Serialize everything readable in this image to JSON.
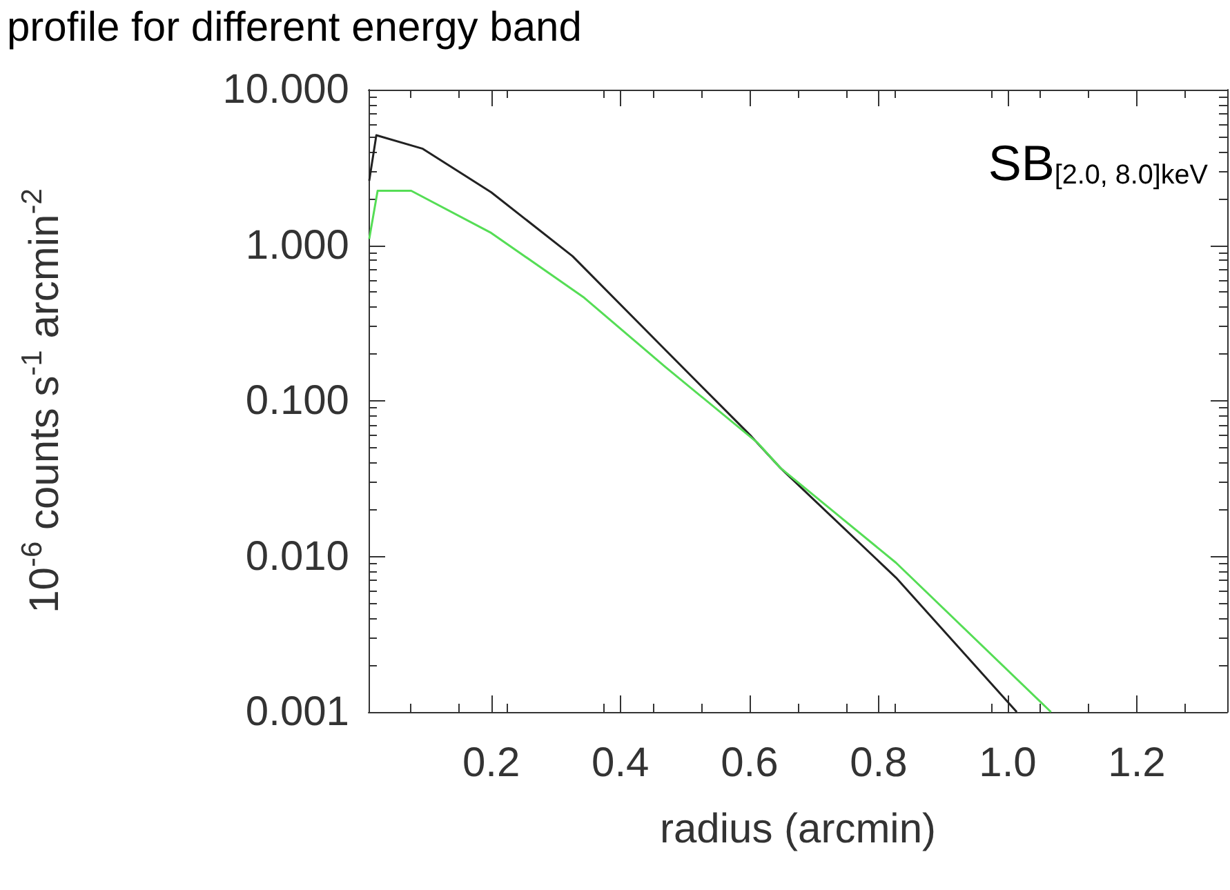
{
  "chart_data": {
    "type": "line",
    "title": "profile for different energy band",
    "xlabel": "radius (arcmin)",
    "ylabel": "10$^{-6}$ counts s$^{-1}$ arcmin$^{-2}$",
    "annotations": [
      "SB$_{[2.0, 8.0]keV}$"
    ],
    "log": "y",
    "grid": false,
    "marker": "none",
    "line_style": "solid",
    "xlim": [
      0.01,
      1.34
    ],
    "ylim": [
      0.001,
      10
    ],
    "xticks": [
      0.2,
      0.4,
      0.6,
      0.8,
      {
        "value": 1,
        "label": "1.0"
      },
      1.2
    ],
    "yticks": [
      {
        "value": 0.001,
        "label": "0.001"
      },
      {
        "value": 0.01,
        "label": "0.010"
      },
      {
        "value": 0.1,
        "label": "0.100"
      },
      {
        "value": 1,
        "label": "1.000"
      },
      {
        "value": 10,
        "label": "10.000"
      }
    ],
    "series": [
      {
        "color": "#222222",
        "x": [
          0.011,
          0.022,
          0.094,
          0.2,
          0.326,
          0.469,
          0.603,
          0.648,
          0.827,
          1.014
        ],
        "values": [
          2.6,
          5.1,
          4.17,
          2.19,
          0.85,
          0.214,
          0.059,
          0.037,
          0.0073,
          0.001
        ]
      },
      {
        "color": "#55dd55",
        "x": [
          0.011,
          0.024,
          0.076,
          0.2,
          0.344,
          0.469,
          0.612,
          0.648,
          0.827,
          1.067
        ],
        "values": [
          1.1,
          2.24,
          2.24,
          1.2,
          0.46,
          0.166,
          0.054,
          0.037,
          0.0091,
          0.001
        ]
      }
    ]
  }
}
